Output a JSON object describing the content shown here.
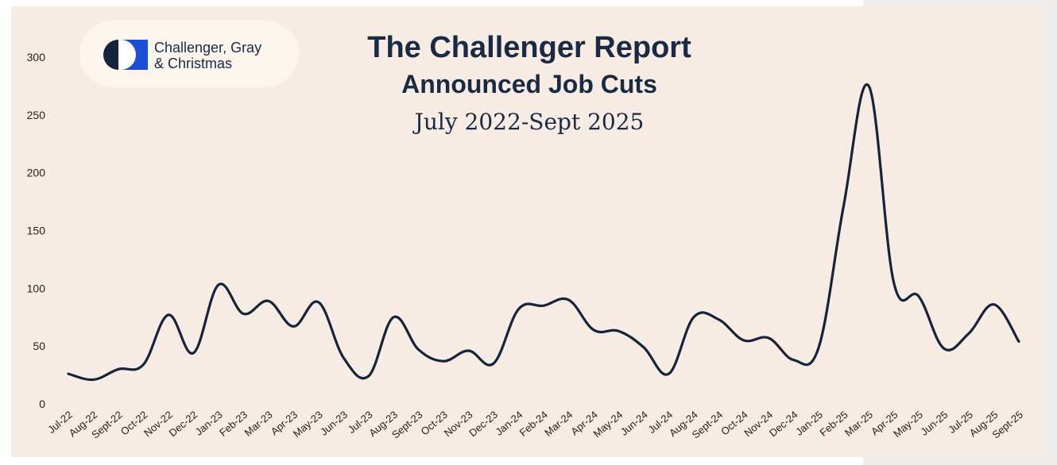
{
  "header": {
    "logo_line1": "Challenger, Gray",
    "logo_line2": "& Christmas",
    "title": "The Challenger Report",
    "subtitle": "Announced Job Cuts",
    "date_range": "July 2022-Sept 2025"
  },
  "colors": {
    "background": "#f6ece3",
    "line": "#15233b",
    "logo_dark": "#15233b",
    "logo_blue": "#1a4fd6"
  },
  "chart_data": {
    "type": "line",
    "title": "The Challenger Report Announced Job Cuts",
    "subtitle": "July 2022-Sept 2025",
    "xlabel": "",
    "ylabel": "",
    "ylim": [
      0,
      300
    ],
    "yticks": [
      0,
      50,
      100,
      150,
      200,
      250,
      300
    ],
    "grid": false,
    "categories": [
      "Jul-22",
      "Aug-22",
      "Sept-22",
      "Oct-22",
      "Nov-22",
      "Dec-22",
      "Jan-23",
      "Feb-23",
      "Mar-23",
      "Apr-23",
      "May-23",
      "Jun-23",
      "Jul-23",
      "Aug-23",
      "Sept-23",
      "Oct-23",
      "Nov-23",
      "Dec-23",
      "Jan-24",
      "Feb-24",
      "Mar-24",
      "Apr-24",
      "May-24",
      "Jun-24",
      "Jul-24",
      "Aug-24",
      "Sept-24",
      "Oct-24",
      "Nov-24",
      "Dec-24",
      "Jan-25",
      "Feb-25",
      "Mar-25",
      "Apr-25",
      "May-25",
      "Jun-25",
      "Jul-25",
      "Aug-25",
      "Sept-25"
    ],
    "values": [
      26,
      21,
      30,
      34,
      77,
      44,
      103,
      78,
      89,
      67,
      88,
      40,
      24,
      75,
      47,
      37,
      46,
      35,
      82,
      85,
      90,
      64,
      63,
      49,
      26,
      75,
      73,
      55,
      57,
      38,
      49,
      172,
      275,
      105,
      93,
      48,
      61,
      86,
      54
    ]
  }
}
